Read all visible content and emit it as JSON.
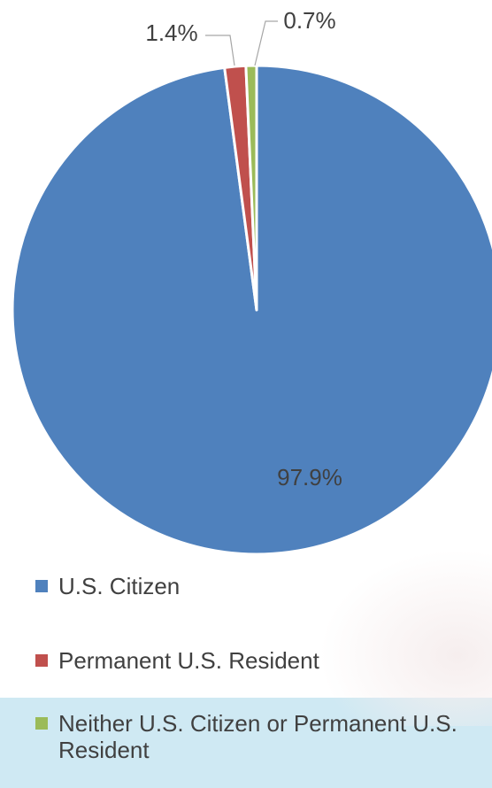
{
  "chart_data": {
    "type": "pie",
    "title": "",
    "slices": [
      {
        "name": "U.S. Citizen",
        "value": 97.9,
        "label": "97.9%",
        "color": "#4f81bd"
      },
      {
        "name": "Permanent U.S. Resident",
        "value": 1.4,
        "label": "1.4%",
        "color": "#c0504d"
      },
      {
        "name": "Neither U.S. Citizen or Permanent U.S. Resident",
        "value": 0.7,
        "label": "0.7%",
        "color": "#9bbb59"
      }
    ],
    "legend_position": "bottom"
  },
  "legend": {
    "items": [
      {
        "label": "U.S. Citizen",
        "color": "#4f81bd"
      },
      {
        "label": "Permanent U.S. Resident",
        "color": "#c0504d"
      },
      {
        "label": "Neither U.S. Citizen or Permanent U.S. Resident",
        "color": "#9bbb59"
      }
    ]
  }
}
